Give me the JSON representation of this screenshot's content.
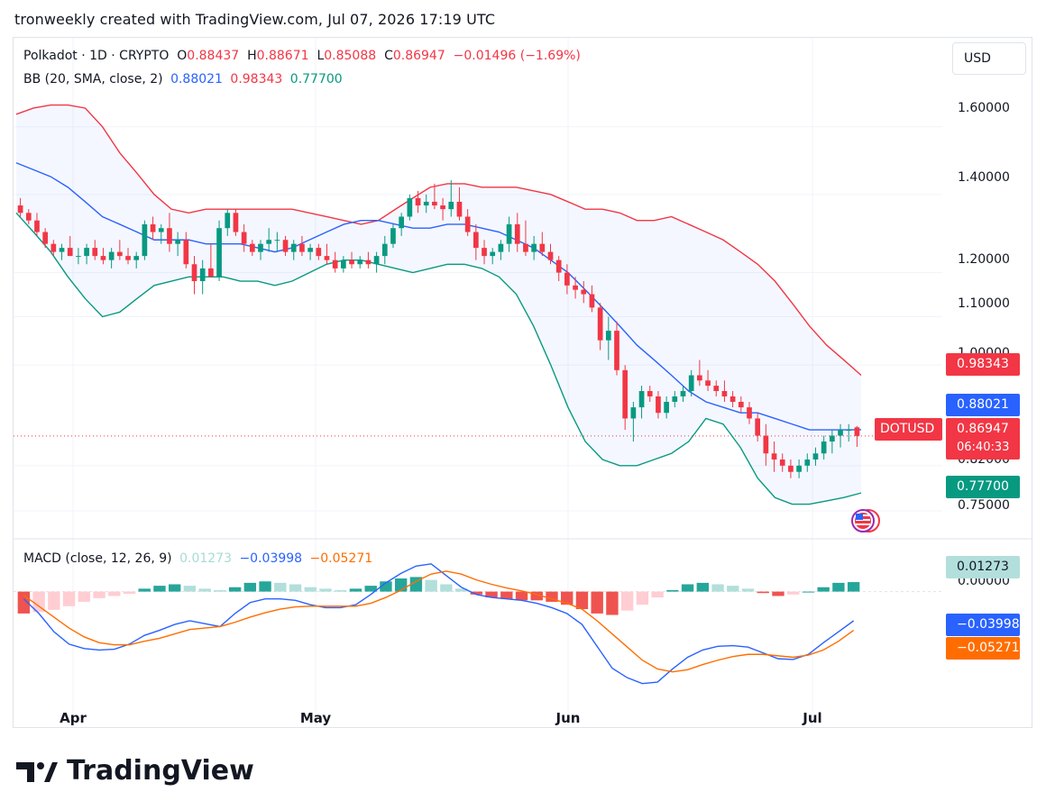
{
  "header": {
    "title": "tronweekly created with TradingView.com, Jul 07, 2026 17:19 UTC"
  },
  "currency_button": "USD",
  "ohlc": {
    "symbol": "Polkadot · 1D · CRYPTO",
    "o_label": "O",
    "o": "0.88437",
    "h_label": "H",
    "h": "0.88671",
    "l_label": "L",
    "l": "0.85088",
    "c_label": "C",
    "c": "0.86947",
    "change": "−0.01496 (−1.69%)"
  },
  "bb": {
    "label": "BB (20, SMA, close, 2)",
    "basis": "0.88021",
    "upper": "0.98343",
    "lower": "0.77700"
  },
  "macd": {
    "label": "MACD (close, 12, 26, 9)",
    "hist": "0.01273",
    "macd": "−0.03998",
    "signal": "−0.05271"
  },
  "price_axis": [
    "1.60000",
    "1.40000",
    "1.20000",
    "1.10000",
    "1.00000",
    "0.82000",
    "0.75000"
  ],
  "price_tags": {
    "upper": "0.98343",
    "basis": "0.88021",
    "last": "0.86947",
    "countdown": "06:40:33",
    "lower": "0.77700",
    "symbol": "DOTUSD"
  },
  "macd_axis": {
    "zero": "0.00000"
  },
  "macd_tags": {
    "hist": "0.01273",
    "macd": "−0.03998",
    "signal": "−0.05271"
  },
  "time_axis": [
    "Apr",
    "May",
    "Jun",
    "Jul"
  ],
  "logo_text": "TradingView",
  "colors": {
    "up": "#089981",
    "down": "#f23645",
    "bb_basis": "#2962ff",
    "bb_upper": "#f23645",
    "bb_lower": "#089981",
    "macd_line": "#2962ff",
    "signal_line": "#ff6d00",
    "hist_pos_strong": "#26a69a",
    "hist_pos_weak": "#b2dfdb",
    "hist_neg_strong": "#ef5350",
    "hist_neg_weak": "#ffcdd2"
  },
  "chart_data": [
    {
      "type": "candlestick",
      "title": "Polkadot · 1D · CRYPTO",
      "x_range": [
        "2026-03-25",
        "2026-07-07"
      ],
      "y_scale": "log",
      "ylim": [
        0.72,
        1.72
      ],
      "ticks": [
        1.6,
        1.4,
        1.2,
        1.1,
        1.0,
        0.82,
        0.75
      ],
      "x_ticks": [
        "Apr",
        "May",
        "Jun",
        "Jul"
      ],
      "candles": [
        [
          1.37,
          1.39,
          1.34,
          1.35
        ],
        [
          1.35,
          1.36,
          1.32,
          1.33
        ],
        [
          1.33,
          1.35,
          1.29,
          1.3
        ],
        [
          1.3,
          1.31,
          1.26,
          1.27
        ],
        [
          1.27,
          1.28,
          1.24,
          1.25
        ],
        [
          1.25,
          1.27,
          1.23,
          1.26
        ],
        [
          1.26,
          1.29,
          1.24,
          1.24
        ],
        [
          1.24,
          1.26,
          1.22,
          1.24
        ],
        [
          1.24,
          1.27,
          1.22,
          1.26
        ],
        [
          1.26,
          1.28,
          1.23,
          1.24
        ],
        [
          1.24,
          1.26,
          1.22,
          1.23
        ],
        [
          1.23,
          1.26,
          1.21,
          1.25
        ],
        [
          1.25,
          1.28,
          1.23,
          1.24
        ],
        [
          1.24,
          1.26,
          1.22,
          1.23
        ],
        [
          1.23,
          1.25,
          1.21,
          1.24
        ],
        [
          1.24,
          1.33,
          1.23,
          1.32
        ],
        [
          1.32,
          1.34,
          1.28,
          1.3
        ],
        [
          1.3,
          1.32,
          1.27,
          1.31
        ],
        [
          1.31,
          1.35,
          1.25,
          1.27
        ],
        [
          1.27,
          1.3,
          1.24,
          1.28
        ],
        [
          1.28,
          1.3,
          1.21,
          1.22
        ],
        [
          1.22,
          1.24,
          1.15,
          1.18
        ],
        [
          1.18,
          1.23,
          1.15,
          1.21
        ],
        [
          1.21,
          1.27,
          1.19,
          1.19
        ],
        [
          1.19,
          1.33,
          1.18,
          1.31
        ],
        [
          1.31,
          1.36,
          1.29,
          1.35
        ],
        [
          1.35,
          1.36,
          1.29,
          1.3
        ],
        [
          1.3,
          1.32,
          1.25,
          1.27
        ],
        [
          1.27,
          1.28,
          1.24,
          1.25
        ],
        [
          1.25,
          1.28,
          1.23,
          1.27
        ],
        [
          1.27,
          1.31,
          1.25,
          1.28
        ],
        [
          1.28,
          1.3,
          1.25,
          1.28
        ],
        [
          1.28,
          1.29,
          1.24,
          1.25
        ],
        [
          1.25,
          1.28,
          1.23,
          1.27
        ],
        [
          1.27,
          1.29,
          1.24,
          1.25
        ],
        [
          1.25,
          1.27,
          1.23,
          1.26
        ],
        [
          1.26,
          1.27,
          1.23,
          1.24
        ],
        [
          1.24,
          1.27,
          1.22,
          1.23
        ],
        [
          1.23,
          1.25,
          1.2,
          1.21
        ],
        [
          1.21,
          1.24,
          1.2,
          1.23
        ],
        [
          1.23,
          1.25,
          1.21,
          1.22
        ],
        [
          1.22,
          1.24,
          1.21,
          1.23
        ],
        [
          1.23,
          1.25,
          1.21,
          1.22
        ],
        [
          1.22,
          1.25,
          1.2,
          1.24
        ],
        [
          1.24,
          1.29,
          1.22,
          1.27
        ],
        [
          1.27,
          1.32,
          1.26,
          1.31
        ],
        [
          1.31,
          1.35,
          1.29,
          1.34
        ],
        [
          1.34,
          1.4,
          1.33,
          1.39
        ],
        [
          1.39,
          1.41,
          1.35,
          1.37
        ],
        [
          1.37,
          1.4,
          1.35,
          1.38
        ],
        [
          1.38,
          1.43,
          1.36,
          1.37
        ],
        [
          1.37,
          1.39,
          1.33,
          1.36
        ],
        [
          1.36,
          1.44,
          1.34,
          1.38
        ],
        [
          1.38,
          1.42,
          1.33,
          1.34
        ],
        [
          1.34,
          1.36,
          1.29,
          1.3
        ],
        [
          1.3,
          1.32,
          1.23,
          1.26
        ],
        [
          1.26,
          1.28,
          1.22,
          1.24
        ],
        [
          1.24,
          1.26,
          1.22,
          1.25
        ],
        [
          1.25,
          1.28,
          1.23,
          1.27
        ],
        [
          1.27,
          1.34,
          1.25,
          1.32
        ],
        [
          1.32,
          1.35,
          1.25,
          1.27
        ],
        [
          1.27,
          1.33,
          1.24,
          1.25
        ],
        [
          1.25,
          1.29,
          1.23,
          1.27
        ],
        [
          1.27,
          1.3,
          1.24,
          1.25
        ],
        [
          1.25,
          1.27,
          1.22,
          1.23
        ],
        [
          1.23,
          1.24,
          1.18,
          1.2
        ],
        [
          1.2,
          1.22,
          1.15,
          1.17
        ],
        [
          1.17,
          1.19,
          1.14,
          1.16
        ],
        [
          1.16,
          1.18,
          1.13,
          1.15
        ],
        [
          1.15,
          1.17,
          1.11,
          1.12
        ],
        [
          1.12,
          1.13,
          1.03,
          1.05
        ],
        [
          1.05,
          1.1,
          1.01,
          1.07
        ],
        [
          1.07,
          1.09,
          0.98,
          0.99
        ],
        [
          0.99,
          1.0,
          0.88,
          0.9
        ],
        [
          0.9,
          0.93,
          0.86,
          0.92
        ],
        [
          0.92,
          0.96,
          0.9,
          0.95
        ],
        [
          0.95,
          0.96,
          0.93,
          0.94
        ],
        [
          0.94,
          0.95,
          0.9,
          0.91
        ],
        [
          0.91,
          0.94,
          0.9,
          0.93
        ],
        [
          0.93,
          0.95,
          0.92,
          0.94
        ],
        [
          0.94,
          0.96,
          0.93,
          0.95
        ],
        [
          0.95,
          0.99,
          0.94,
          0.98
        ],
        [
          0.98,
          1.01,
          0.96,
          0.97
        ],
        [
          0.97,
          0.99,
          0.95,
          0.96
        ],
        [
          0.96,
          0.97,
          0.94,
          0.95
        ],
        [
          0.95,
          0.97,
          0.93,
          0.94
        ],
        [
          0.94,
          0.95,
          0.92,
          0.93
        ],
        [
          0.93,
          0.94,
          0.91,
          0.92
        ],
        [
          0.92,
          0.93,
          0.89,
          0.9
        ],
        [
          0.9,
          0.91,
          0.86,
          0.87
        ],
        [
          0.87,
          0.89,
          0.82,
          0.84
        ],
        [
          0.84,
          0.86,
          0.81,
          0.83
        ],
        [
          0.83,
          0.84,
          0.81,
          0.82
        ],
        [
          0.82,
          0.83,
          0.8,
          0.81
        ],
        [
          0.81,
          0.83,
          0.8,
          0.82
        ],
        [
          0.82,
          0.84,
          0.81,
          0.83
        ],
        [
          0.83,
          0.85,
          0.82,
          0.84
        ],
        [
          0.84,
          0.87,
          0.83,
          0.86
        ],
        [
          0.86,
          0.88,
          0.84,
          0.87
        ],
        [
          0.87,
          0.89,
          0.85,
          0.88
        ],
        [
          0.88,
          0.89,
          0.86,
          0.88
        ],
        [
          0.88437,
          0.88671,
          0.85088,
          0.86947
        ]
      ],
      "bb_upper": [
        1.64,
        1.66,
        1.67,
        1.67,
        1.66,
        1.6,
        1.52,
        1.46,
        1.4,
        1.36,
        1.35,
        1.36,
        1.36,
        1.36,
        1.36,
        1.36,
        1.36,
        1.35,
        1.34,
        1.33,
        1.32,
        1.33,
        1.36,
        1.39,
        1.42,
        1.43,
        1.43,
        1.42,
        1.42,
        1.42,
        1.41,
        1.4,
        1.38,
        1.36,
        1.36,
        1.35,
        1.33,
        1.33,
        1.34,
        1.32,
        1.3,
        1.28,
        1.25,
        1.22,
        1.18,
        1.13,
        1.08,
        1.04,
        1.01,
        0.98
      ],
      "bb_basis": [
        1.49,
        1.47,
        1.45,
        1.42,
        1.38,
        1.34,
        1.32,
        1.3,
        1.28,
        1.28,
        1.28,
        1.27,
        1.27,
        1.27,
        1.26,
        1.25,
        1.26,
        1.28,
        1.3,
        1.32,
        1.33,
        1.33,
        1.32,
        1.31,
        1.31,
        1.32,
        1.32,
        1.31,
        1.3,
        1.28,
        1.26,
        1.23,
        1.2,
        1.16,
        1.12,
        1.08,
        1.04,
        1.01,
        0.98,
        0.95,
        0.93,
        0.92,
        0.91,
        0.91,
        0.9,
        0.89,
        0.88,
        0.88,
        0.88,
        0.88021
      ],
      "bb_lower": [
        1.35,
        1.3,
        1.25,
        1.19,
        1.14,
        1.1,
        1.11,
        1.14,
        1.17,
        1.18,
        1.19,
        1.19,
        1.19,
        1.18,
        1.18,
        1.17,
        1.18,
        1.2,
        1.22,
        1.23,
        1.23,
        1.22,
        1.21,
        1.2,
        1.21,
        1.22,
        1.22,
        1.21,
        1.19,
        1.15,
        1.08,
        1.0,
        0.92,
        0.86,
        0.83,
        0.82,
        0.82,
        0.83,
        0.84,
        0.86,
        0.9,
        0.89,
        0.85,
        0.8,
        0.77,
        0.76,
        0.76,
        0.765,
        0.77,
        0.777
      ]
    },
    {
      "type": "macd",
      "title": "MACD (close, 12, 26, 9)",
      "ylim": [
        -0.14,
        0.06
      ],
      "zero": 0.0,
      "macd": [
        -0.01,
        -0.03,
        -0.055,
        -0.072,
        -0.078,
        -0.08,
        -0.079,
        -0.072,
        -0.06,
        -0.053,
        -0.045,
        -0.04,
        -0.044,
        -0.048,
        -0.03,
        -0.015,
        -0.01,
        -0.01,
        -0.012,
        -0.018,
        -0.022,
        -0.022,
        -0.018,
        -0.004,
        0.012,
        0.025,
        0.035,
        0.038,
        0.022,
        0.006,
        -0.004,
        -0.008,
        -0.01,
        -0.012,
        -0.016,
        -0.022,
        -0.03,
        -0.045,
        -0.075,
        -0.105,
        -0.118,
        -0.126,
        -0.124,
        -0.106,
        -0.09,
        -0.08,
        -0.075,
        -0.074,
        -0.076,
        -0.084,
        -0.092,
        -0.093,
        -0.086,
        -0.07,
        -0.055,
        -0.04
      ],
      "signal": [
        -0.005,
        -0.02,
        -0.035,
        -0.05,
        -0.062,
        -0.07,
        -0.073,
        -0.073,
        -0.068,
        -0.064,
        -0.058,
        -0.052,
        -0.05,
        -0.048,
        -0.042,
        -0.035,
        -0.029,
        -0.024,
        -0.021,
        -0.02,
        -0.02,
        -0.02,
        -0.02,
        -0.016,
        -0.008,
        0.002,
        0.014,
        0.024,
        0.028,
        0.024,
        0.016,
        0.01,
        0.005,
        0.001,
        -0.004,
        -0.01,
        -0.016,
        -0.024,
        -0.04,
        -0.058,
        -0.076,
        -0.094,
        -0.106,
        -0.11,
        -0.107,
        -0.1,
        -0.094,
        -0.089,
        -0.086,
        -0.086,
        -0.088,
        -0.09,
        -0.087,
        -0.08,
        -0.068,
        -0.053
      ],
      "histogram": [
        -0.03,
        -0.028,
        -0.025,
        -0.02,
        -0.014,
        -0.009,
        -0.006,
        -0.003,
        0.004,
        0.008,
        0.01,
        0.008,
        0.004,
        0.002,
        0.006,
        0.012,
        0.014,
        0.012,
        0.01,
        0.006,
        0.004,
        0.002,
        0.004,
        0.008,
        0.014,
        0.018,
        0.02,
        0.016,
        0.01,
        0.004,
        -0.004,
        -0.008,
        -0.01,
        -0.012,
        -0.012,
        -0.014,
        -0.018,
        -0.024,
        -0.03,
        -0.032,
        -0.026,
        -0.018,
        -0.008,
        0.002,
        0.01,
        0.012,
        0.01,
        0.008,
        0.004,
        -0.002,
        -0.006,
        -0.004,
        0.0,
        0.006,
        0.012,
        0.013
      ]
    }
  ]
}
